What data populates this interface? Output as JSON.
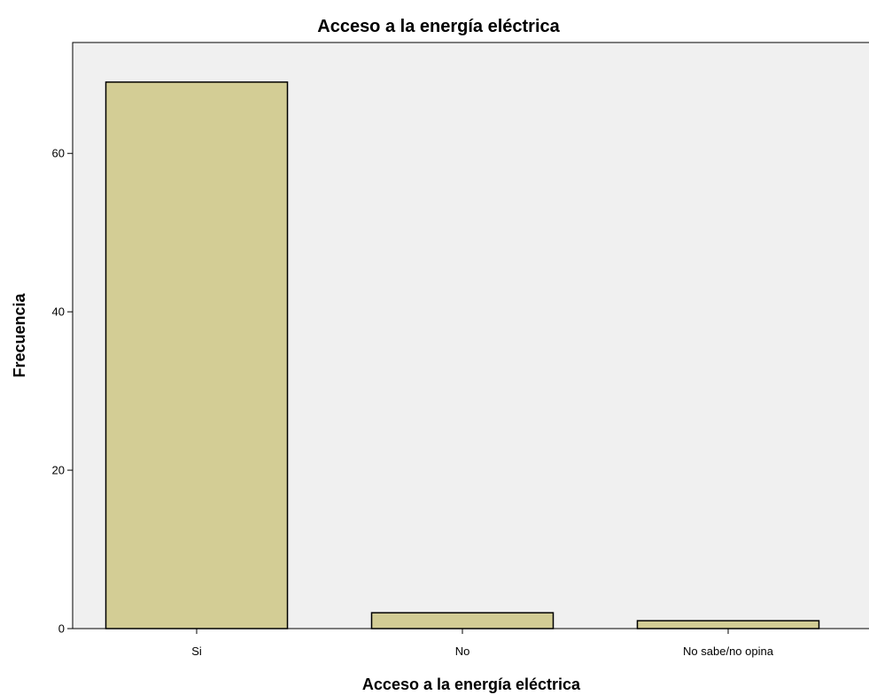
{
  "chart_data": {
    "type": "bar",
    "title": "Acceso a la energía eléctrica",
    "xlabel": "Acceso a la energía eléctrica",
    "ylabel": "Frecuencia",
    "categories": [
      "Si",
      "No",
      "No sabe/no opina"
    ],
    "values": [
      69,
      2,
      1
    ],
    "ylim": [
      0,
      74
    ],
    "yticks": [
      0,
      20,
      40,
      60
    ],
    "grid": false,
    "colors": {
      "bar_fill": "#d3cd95",
      "bar_stroke": "#000000",
      "plot_background": "#f0f0f0",
      "axis": "#000000"
    }
  }
}
